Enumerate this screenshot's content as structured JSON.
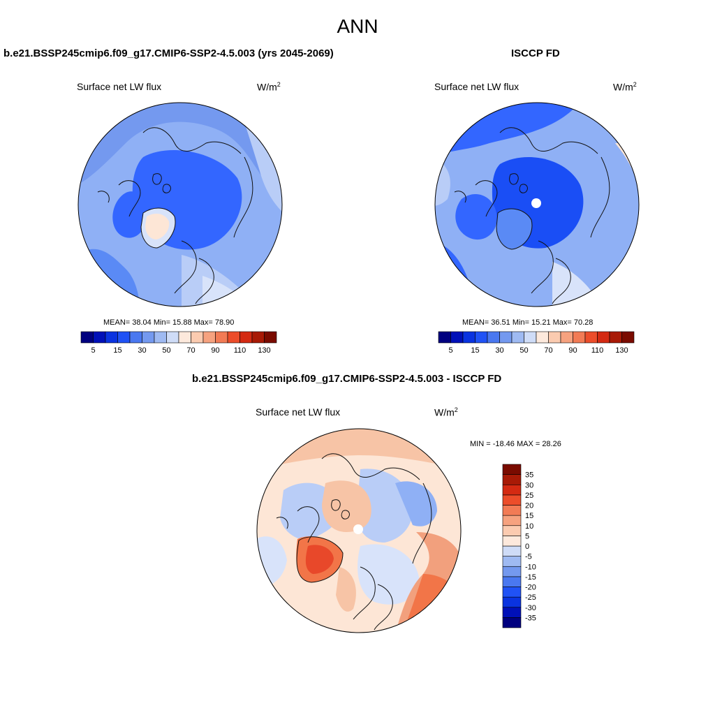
{
  "page_title": "ANN",
  "colors": {
    "ocean_blue_1": "#1a4ef5",
    "ocean_blue_2": "#3366ff",
    "blue_mid": "#5a8af5",
    "blue_light": "#8fb0f5",
    "blue_pale": "#b9cdf7",
    "blue_faint": "#d8e3fa",
    "cream": "#fde6d6",
    "salmon_pale": "#f7c4a6",
    "salmon": "#f2a07d",
    "orange": "#f27548",
    "red_orange": "#e8482a",
    "coast": "#111111"
  },
  "panels": [
    {
      "case_title": "b.e21.BSSP245cmip6.f09_g17.CMIP6-SSP2-4.5.003 (yrs 2045-2069)",
      "left_label": "Surface net LW flux",
      "units_base": "W/m",
      "units_exp": "2",
      "stats": "MEAN=  38.04   Min=  15.88   Max=  78.90"
    },
    {
      "case_title": "ISCCP FD",
      "left_label": "Surface net LW flux",
      "units_base": "W/m",
      "units_exp": "2",
      "stats": "MEAN=  36.51   Min=  15.21   Max=  70.28"
    },
    {
      "case_title": "b.e21.BSSP245cmip6.f09_g17.CMIP6-SSP2-4.5.003 - ISCCP FD",
      "left_label": "Surface net LW flux",
      "units_base": "W/m",
      "units_exp": "2",
      "stats": "MIN = -18.46 MAX =  28.26"
    }
  ],
  "colorbar_horizontal": {
    "colors": [
      "#00007f",
      "#0010b8",
      "#0a33e0",
      "#2052f5",
      "#4a78f0",
      "#7499ef",
      "#9fbaf2",
      "#cfdcf7",
      "#fde9dc",
      "#fbcbb0",
      "#f6a27f",
      "#f27b55",
      "#ec4d2a",
      "#d42a12",
      "#a81a06",
      "#7a0b00"
    ],
    "tick_labels": [
      "5",
      "15",
      "30",
      "50",
      "70",
      "90",
      "110",
      "130"
    ]
  },
  "colorbar_vertical": {
    "colors": [
      "#00007f",
      "#0010b8",
      "#0a33e0",
      "#2052f5",
      "#4a78f0",
      "#7499ef",
      "#9fbaf2",
      "#cfdcf7",
      "#fde9dc",
      "#fbcbb0",
      "#f6a27f",
      "#f27b55",
      "#ec4d2a",
      "#d42a12",
      "#a81a06",
      "#7a0b00"
    ],
    "tick_labels": [
      "35",
      "30",
      "25",
      "20",
      "15",
      "10",
      "5",
      "0",
      "-5",
      "-10",
      "-15",
      "-20",
      "-25",
      "-30",
      "-35"
    ]
  }
}
